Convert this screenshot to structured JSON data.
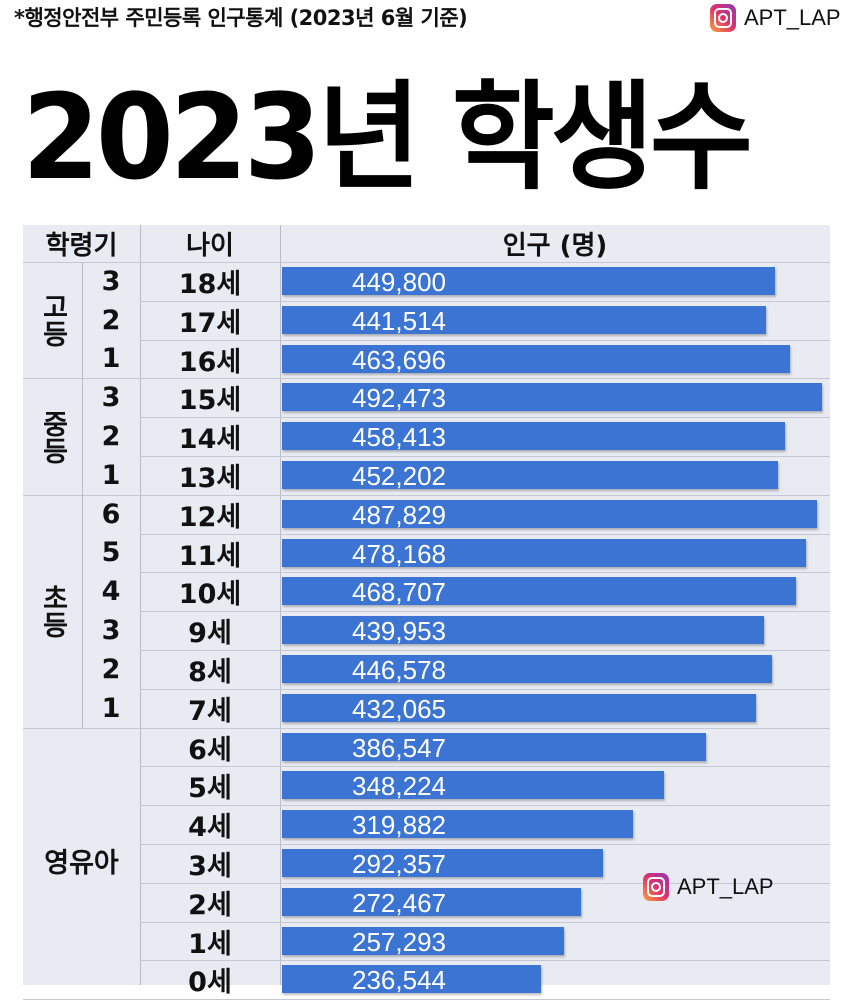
{
  "source_note": "*행정안전부 주민등록 인구통계 (2023년 6월 기준)",
  "brand": {
    "handle": "APT_LAP",
    "icon": "instagram-icon"
  },
  "colors": {
    "bar": "#3b74d3",
    "table_bg": "#e8ebf2"
  },
  "chart_data": {
    "type": "bar",
    "orientation": "horizontal",
    "title": "2023년 학생수",
    "headers": [
      "학령기",
      "나이",
      "인구 (명)"
    ],
    "groups": [
      {
        "label": "고등",
        "rows": 3
      },
      {
        "label": "중등",
        "rows": 3
      },
      {
        "label": "초등",
        "rows": 6
      },
      {
        "label": "영유아",
        "rows": 7
      }
    ],
    "grades": [
      "3",
      "2",
      "1",
      "3",
      "2",
      "1",
      "6",
      "5",
      "4",
      "3",
      "2",
      "1",
      "",
      "",
      "",
      "",
      "",
      "",
      ""
    ],
    "categories": [
      "18세",
      "17세",
      "16세",
      "15세",
      "14세",
      "13세",
      "12세",
      "11세",
      "10세",
      "9세",
      "8세",
      "7세",
      "6세",
      "5세",
      "4세",
      "3세",
      "2세",
      "1세",
      "0세"
    ],
    "values": [
      449800,
      441514,
      463696,
      492473,
      458413,
      452202,
      487829,
      478168,
      468707,
      439953,
      446578,
      432065,
      386547,
      348224,
      319882,
      292357,
      272467,
      257293,
      236544
    ],
    "value_labels": [
      "449,800",
      "441,514",
      "463,696",
      "492,473",
      "458,413",
      "452,202",
      "487,829",
      "478,168",
      "468,707",
      "439,953",
      "446,578",
      "432,065",
      "386,547",
      "348,224",
      "319,882",
      "292,357",
      "272,467",
      "257,293",
      "236,544"
    ]
  }
}
